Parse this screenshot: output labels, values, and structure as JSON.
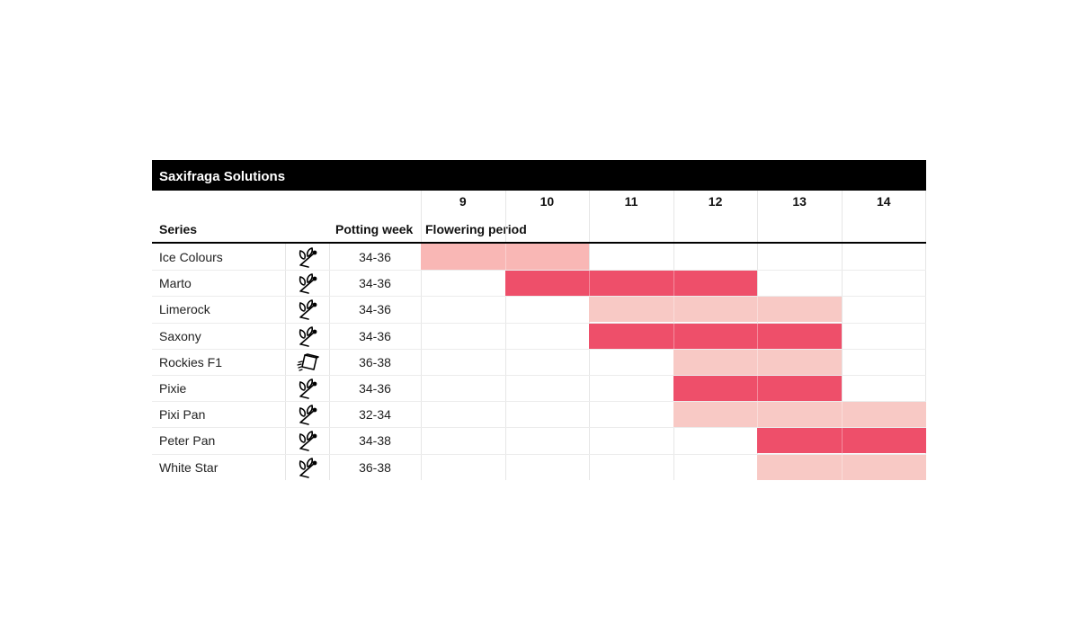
{
  "title": "Saxifraga Solutions",
  "headers": {
    "series": "Series",
    "potting": "Potting week",
    "flowering": "Flowering period"
  },
  "icons": {
    "plant": "plant-sprout-icon",
    "tray": "seed-tray-icon"
  },
  "colors": {
    "light": "#f9b7b5",
    "pale": "#f8c9c5",
    "strong": "#ee4f6a"
  },
  "chart_data": {
    "type": "table",
    "weeks": [
      9,
      10,
      11,
      12,
      13,
      14
    ],
    "rows": [
      {
        "series": "Ice Colours",
        "icon": "plant",
        "potting": "34-36",
        "start": 9,
        "end": 10,
        "shade": "light"
      },
      {
        "series": "Marto",
        "icon": "plant",
        "potting": "34-36",
        "start": 10,
        "end": 12,
        "shade": "strong"
      },
      {
        "series": "Limerock",
        "icon": "plant",
        "potting": "34-36",
        "start": 11,
        "end": 13,
        "shade": "pale"
      },
      {
        "series": "Saxony",
        "icon": "plant",
        "potting": "34-36",
        "start": 11,
        "end": 13,
        "shade": "strong"
      },
      {
        "series": "Rockies F1",
        "icon": "tray",
        "potting": "36-38",
        "start": 12,
        "end": 13,
        "shade": "pale"
      },
      {
        "series": "Pixie",
        "icon": "plant",
        "potting": "34-36",
        "start": 12,
        "end": 13,
        "shade": "strong"
      },
      {
        "series": "Pixi Pan",
        "icon": "plant",
        "potting": "32-34",
        "start": 12,
        "end": 14,
        "shade": "pale"
      },
      {
        "series": "Peter Pan",
        "icon": "plant",
        "potting": "34-38",
        "start": 13,
        "end": 14,
        "shade": "strong"
      },
      {
        "series": "White Star",
        "icon": "plant",
        "potting": "36-38",
        "start": 13,
        "end": 14,
        "shade": "pale"
      }
    ]
  }
}
